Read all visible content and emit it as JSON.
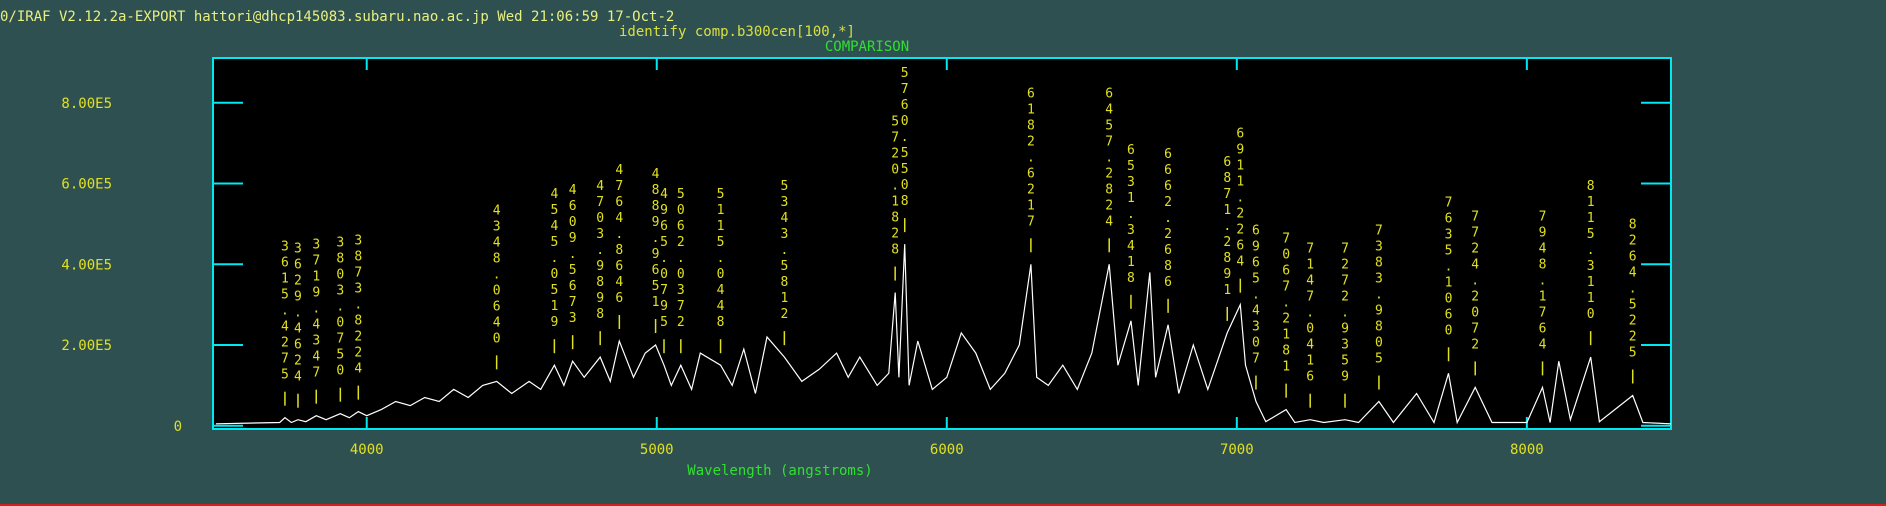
{
  "header": {
    "status": "0/IRAF V2.12.2a-EXPORT hattori@dhcp145083.subaru.nao.ac.jp Wed 21:06:59 17-Oct-2"
  },
  "chart_data": {
    "type": "line",
    "title": "identify comp.b300cen[100,*]",
    "subtitle": "COMPARISON",
    "x_label": "Wavelength (angstroms)",
    "xlim": [
      3470,
      8497
    ],
    "xticks": [
      4000,
      5000,
      6000,
      7000,
      8000
    ],
    "ylim": [
      -8000,
      911000
    ],
    "yticks": [
      0,
      {
        "value": 200000,
        "label": "2.00E5"
      },
      {
        "value": 400000,
        "label": "4.00E5"
      },
      {
        "value": 600000,
        "label": "6.00E5"
      },
      {
        "value": 800000,
        "label": "8.00E5"
      }
    ],
    "series": [
      {
        "color": "#ffffff",
        "x": [
          3480,
          3700,
          3718,
          3740,
          3763,
          3790,
          3826,
          3860,
          3909,
          3940,
          3971,
          4000,
          4050,
          4100,
          4150,
          4200,
          4250,
          4300,
          4350,
          4400,
          4448,
          4500,
          4560,
          4600,
          4647,
          4680,
          4710,
          4750,
          4805,
          4840,
          4871,
          4920,
          4960,
          4996,
          5025,
          5050,
          5083,
          5120,
          5150,
          5220,
          5260,
          5300,
          5340,
          5380,
          5440,
          5500,
          5560,
          5620,
          5660,
          5700,
          5760,
          5800,
          5822,
          5835,
          5855,
          5870,
          5900,
          5950,
          6000,
          6050,
          6100,
          6150,
          6200,
          6250,
          6290,
          6310,
          6350,
          6400,
          6450,
          6500,
          6560,
          6590,
          6635,
          6660,
          6700,
          6720,
          6763,
          6800,
          6850,
          6900,
          6967,
          7012,
          7030,
          7066,
          7100,
          7170,
          7200,
          7253,
          7300,
          7373,
          7420,
          7490,
          7540,
          7620,
          7680,
          7730,
          7760,
          7822,
          7880,
          8000,
          8054,
          8080,
          8110,
          8150,
          8220,
          8250,
          8365,
          8400,
          8497
        ],
        "values": [
          5000,
          8000,
          20000,
          8000,
          15000,
          10000,
          25000,
          15000,
          30000,
          20000,
          35000,
          25000,
          40000,
          60000,
          50000,
          70000,
          60000,
          90000,
          70000,
          100000,
          110000,
          80000,
          110000,
          90000,
          150000,
          100000,
          160000,
          120000,
          170000,
          110000,
          210000,
          120000,
          180000,
          200000,
          150000,
          100000,
          150000,
          90000,
          180000,
          150000,
          100000,
          190000,
          80000,
          220000,
          170000,
          110000,
          140000,
          180000,
          120000,
          170000,
          100000,
          130000,
          330000,
          120000,
          450000,
          100000,
          210000,
          90000,
          120000,
          230000,
          180000,
          90000,
          130000,
          200000,
          400000,
          120000,
          100000,
          150000,
          90000,
          180000,
          400000,
          150000,
          260000,
          100000,
          380000,
          120000,
          250000,
          80000,
          200000,
          90000,
          230000,
          300000,
          150000,
          60000,
          10000,
          40000,
          8000,
          15000,
          8000,
          15000,
          8000,
          60000,
          8000,
          80000,
          8000,
          130000,
          8000,
          95000,
          8000,
          8000,
          95000,
          8000,
          160000,
          15000,
          170000,
          10000,
          75000,
          8000,
          5000
        ]
      }
    ],
    "annotations": [
      {
        "x": 3718,
        "label": "3615.4275"
      },
      {
        "x": 3763,
        "label": "3629.4624"
      },
      {
        "x": 3826,
        "label": "3719.4347"
      },
      {
        "x": 3909,
        "label": "3803.0750"
      },
      {
        "x": 3971,
        "label": "3873.8224"
      },
      {
        "x": 4448,
        "label": "4348.0640"
      },
      {
        "x": 4647,
        "label": "4545.0519"
      },
      {
        "x": 4710,
        "label": "4609.5673"
      },
      {
        "x": 4805,
        "label": "4703.9898"
      },
      {
        "x": 4871,
        "label": "4764.8646"
      },
      {
        "x": 4996,
        "label": "4889.9651"
      },
      {
        "x": 5025,
        "label": "4965.0795"
      },
      {
        "x": 5083,
        "label": "5062.0372"
      },
      {
        "x": 5220,
        "label": "5115.0448"
      },
      {
        "x": 5440,
        "label": "5343.5812"
      },
      {
        "x": 5822,
        "label": "5720.1828"
      },
      {
        "x": 5855,
        "label": "5760.5508"
      },
      {
        "x": 6290,
        "label": "6182.6217"
      },
      {
        "x": 6560,
        "label": "6457.2824"
      },
      {
        "x": 6635,
        "label": "6531.3418"
      },
      {
        "x": 6763,
        "label": "6662.2686"
      },
      {
        "x": 6967,
        "label": "6871.2891"
      },
      {
        "x": 7012,
        "label": "6911.2264"
      },
      {
        "x": 7066,
        "label": "6965.4307"
      },
      {
        "x": 7170,
        "label": "7067.2181"
      },
      {
        "x": 7253,
        "label": "7147.0416"
      },
      {
        "x": 7373,
        "label": "7272.9359"
      },
      {
        "x": 7490,
        "label": "7383.9805"
      },
      {
        "x": 7730,
        "label": "7635.1060"
      },
      {
        "x": 7822,
        "label": "7724.2072"
      },
      {
        "x": 8054,
        "label": "7948.1764"
      },
      {
        "x": 8220,
        "label": "8115.3110"
      },
      {
        "x": 8365,
        "label": "8264.5225"
      }
    ]
  }
}
